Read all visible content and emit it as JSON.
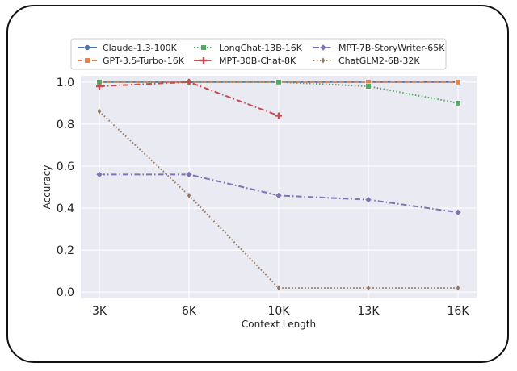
{
  "chart_data": {
    "type": "line",
    "xlabel": "Context Length",
    "ylabel": "Accuracy",
    "categories": [
      "3K",
      "6K",
      "10K",
      "13K",
      "16K"
    ],
    "ylim": [
      -0.03,
      1.03
    ],
    "yticks": [
      "0.0",
      "0.2",
      "0.4",
      "0.6",
      "0.8",
      "1.0"
    ],
    "grid": true,
    "legend_placement": "top-center",
    "series": [
      {
        "name": "Claude-1.3-100K",
        "color": "#4c72b0",
        "dash": "solid",
        "marker": "circle",
        "values": [
          1.0,
          1.0,
          1.0,
          1.0,
          1.0
        ]
      },
      {
        "name": "GPT-3.5-Turbo-16K",
        "color": "#dd8452",
        "dash": "dashed",
        "marker": "square",
        "values": [
          1.0,
          1.0,
          1.0,
          1.0,
          1.0
        ]
      },
      {
        "name": "LongChat-13B-16K",
        "color": "#55a868",
        "dash": "dotted",
        "marker": "square",
        "values": [
          1.0,
          1.0,
          1.0,
          0.98,
          0.9
        ]
      },
      {
        "name": "MPT-30B-Chat-8K",
        "color": "#c44e52",
        "dash": "dashdot",
        "marker": "plus",
        "values": [
          0.98,
          1.0,
          0.84,
          null,
          null
        ]
      },
      {
        "name": "MPT-7B-StoryWriter-65K",
        "color": "#8172b3",
        "dash": "dashdot",
        "marker": "diamond",
        "values": [
          0.56,
          0.56,
          0.46,
          0.44,
          0.38
        ]
      },
      {
        "name": "ChatGLM2-6B-32K",
        "color": "#937860",
        "dash": "dotted",
        "marker": "thin-diamond",
        "values": [
          0.86,
          0.46,
          0.02,
          0.02,
          0.02
        ]
      }
    ]
  }
}
